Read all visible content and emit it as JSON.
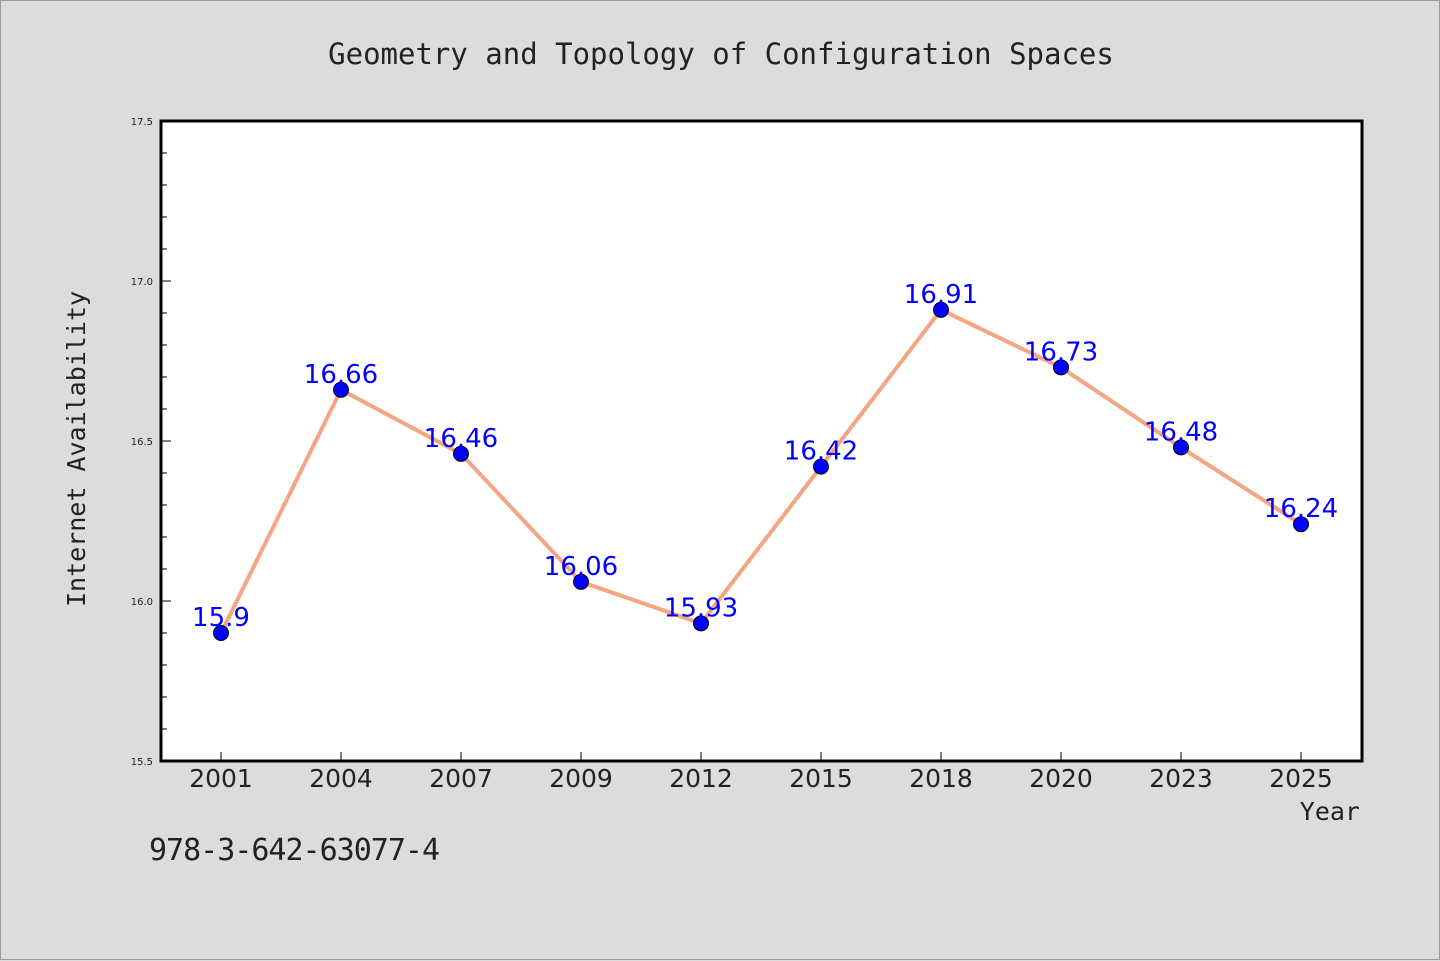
{
  "chart_data": {
    "type": "line",
    "title": "Geometry and Topology of Configuration Spaces",
    "xlabel": "Year",
    "ylabel": "Internet Availability",
    "categories": [
      "2001",
      "2004",
      "2007",
      "2009",
      "2012",
      "2015",
      "2018",
      "2020",
      "2023",
      "2025"
    ],
    "values": [
      15.9,
      16.66,
      16.46,
      16.06,
      15.93,
      16.42,
      16.91,
      16.73,
      16.48,
      16.24
    ],
    "data_labels": [
      "15.9",
      "16.66",
      "16.46",
      "16.06",
      "15.93",
      "16.42",
      "16.91",
      "16.73",
      "16.48",
      "16.24"
    ],
    "ylim": [
      15.5,
      17.5
    ],
    "yticks": [
      "15.5",
      "16.0",
      "16.5",
      "17.0",
      "17.5"
    ],
    "grid": false,
    "line_color": "#f4a582",
    "marker_color": "#0000ff",
    "label_color": "#0000ff"
  },
  "footer": {
    "isbn": "978-3-642-63077-4"
  }
}
